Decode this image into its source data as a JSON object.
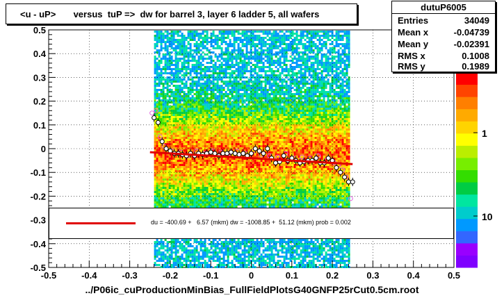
{
  "title": "<u - uP>       versus  tuP =>  dw for barrel 3, layer 6 ladder 5, all wafers",
  "stats": {
    "name": "dutuP6005",
    "rows": [
      {
        "label": "Entries",
        "value": "34049"
      },
      {
        "label": "Mean x",
        "value": "-0.04739"
      },
      {
        "label": "Mean y",
        "value": "-0.02391"
      },
      {
        "label": "RMS x",
        "value": "0.1008"
      },
      {
        "label": "RMS y",
        "value": "0.1989"
      }
    ]
  },
  "fit_text": "du = -400.69 +   6.57 (mkm) dw = -1008.85 +  51.12 (mkm) prob = 0.002",
  "bottom_label": "../P06ic_cuProductionMinBias_FullFieldPlotsG40GNFP25rCut0.5cm.root",
  "colors": {
    "fit_line": "#e00000",
    "profile_black": "#000000",
    "profile_magenta": "#e060e0",
    "palette": [
      "#7f00ff",
      "#9900ff",
      "#3366ff",
      "#0099ff",
      "#00cccc",
      "#00e6a0",
      "#00cc44",
      "#33dd00",
      "#77ee00",
      "#bbee00",
      "#ffff00",
      "#ffd400",
      "#ffaa00",
      "#ff7f00",
      "#ff4400",
      "#ff0000"
    ]
  },
  "chart_data": {
    "type": "heatmap",
    "title": "<u - uP>       versus  tuP =>  dw for barrel 3, layer 6 ladder 5, all wafers",
    "xlabel": "",
    "ylabel": "",
    "xlim": [
      -0.5,
      0.5
    ],
    "ylim": [
      -0.5,
      0.5
    ],
    "x_ticks": [
      "-0.5",
      "-0.4",
      "-0.3",
      "-0.2",
      "-0.1",
      "0",
      "0.1",
      "0.2",
      "0.3",
      "0.4",
      "0.5"
    ],
    "y_ticks": [
      "-0.5",
      "-0.4",
      "-0.3",
      "-0.2",
      "-0.1",
      "0",
      "0.1",
      "0.2",
      "0.3",
      "0.4",
      "0.5"
    ],
    "colorbar_ticks": [
      "10",
      "1"
    ],
    "heatmap_x_range": [
      -0.24,
      0.24
    ],
    "heatmap_y_range": [
      -0.5,
      0.5
    ],
    "density_center_y": -0.02,
    "grid": true,
    "fit_line": {
      "x": [
        -0.25,
        0.25
      ],
      "y": [
        -0.015,
        -0.065
      ]
    },
    "profile_black": {
      "x": [
        -0.24,
        -0.23,
        -0.22,
        -0.21,
        -0.2,
        -0.19,
        -0.18,
        -0.17,
        -0.16,
        -0.15,
        -0.14,
        -0.13,
        -0.12,
        -0.11,
        -0.1,
        -0.09,
        -0.08,
        -0.07,
        -0.06,
        -0.05,
        -0.04,
        -0.03,
        -0.02,
        -0.01,
        0,
        0.01,
        0.02,
        0.03,
        0.04,
        0.05,
        0.06,
        0.07,
        0.08,
        0.09,
        0.1,
        0.11,
        0.12,
        0.13,
        0.14,
        0.15,
        0.16,
        0.17,
        0.18,
        0.19,
        0.2,
        0.21,
        0.22,
        0.23,
        0.24,
        0.25
      ],
      "y": [
        0.13,
        0.11,
        0.03,
        0.0,
        -0.01,
        -0.02,
        -0.02,
        -0.025,
        -0.03,
        -0.02,
        -0.03,
        -0.02,
        -0.025,
        -0.02,
        -0.015,
        -0.02,
        -0.03,
        -0.02,
        -0.02,
        -0.015,
        -0.02,
        -0.025,
        -0.02,
        -0.03,
        -0.02,
        0.0,
        -0.01,
        -0.02,
        0.0,
        -0.04,
        -0.06,
        -0.055,
        -0.03,
        -0.05,
        -0.04,
        -0.05,
        -0.06,
        -0.055,
        -0.05,
        -0.05,
        -0.04,
        -0.06,
        -0.06,
        -0.04,
        -0.05,
        -0.08,
        -0.1,
        -0.12,
        -0.14,
        -0.14
      ]
    },
    "profile_magenta": {
      "x": [
        -0.245,
        -0.235,
        -0.225,
        -0.215,
        -0.195,
        -0.175,
        -0.155,
        -0.135,
        -0.115,
        -0.095,
        -0.075,
        -0.055,
        -0.035,
        -0.015,
        0.005,
        0.025,
        0.045,
        0.065,
        0.085,
        0.105,
        0.125,
        0.145,
        0.165,
        0.185,
        0.205,
        0.215,
        0.225,
        0.235,
        0.245
      ],
      "y": [
        0.15,
        0.16,
        0.05,
        0.01,
        -0.01,
        -0.015,
        -0.03,
        -0.01,
        -0.02,
        -0.01,
        -0.015,
        -0.02,
        -0.01,
        -0.02,
        -0.01,
        -0.025,
        -0.03,
        -0.035,
        -0.02,
        -0.04,
        -0.035,
        -0.04,
        -0.03,
        -0.05,
        -0.06,
        -0.07,
        -0.09,
        -0.12,
        -0.21
      ]
    }
  }
}
